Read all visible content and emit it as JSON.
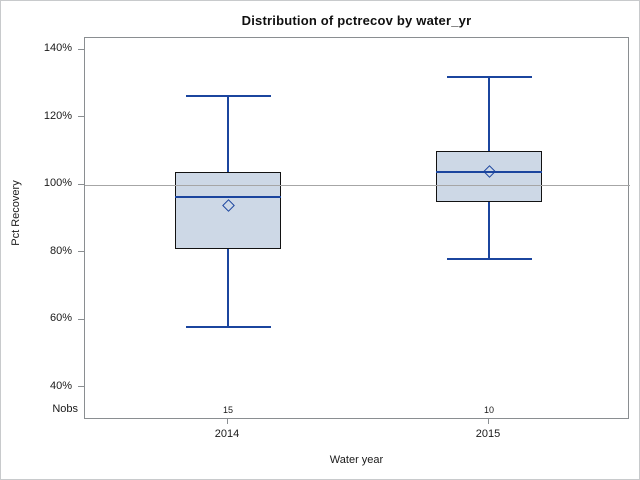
{
  "chart_data": {
    "type": "boxplot",
    "title": "Distribution of pctrecov by water_yr",
    "xlabel": "Water year",
    "ylabel": "Pct Recovery",
    "nobs_label": "Nobs",
    "y_axis": {
      "tick_labels": [
        "140%",
        "120%",
        "100%",
        "80%",
        "60%",
        "40%"
      ],
      "tick_values": [
        140,
        120,
        100,
        80,
        60,
        40
      ],
      "unit": "%"
    },
    "reference_line_value": 100,
    "categories": [
      "2014",
      "2015"
    ],
    "groups": [
      {
        "category": "2014",
        "nobs": "15",
        "whisker_low": 58,
        "q1": 81,
        "median": 96.5,
        "mean": 94,
        "q3": 104,
        "whisker_high": 126.5
      },
      {
        "category": "2015",
        "nobs": "10",
        "whisker_low": 78,
        "q1": 95,
        "median": 104,
        "mean": 104,
        "q3": 110,
        "whisker_high": 132
      }
    ],
    "legend": "none",
    "grid": "off",
    "colors": {
      "box_fill": "#cdd8e6",
      "box_border": "#121212",
      "line_blue": "#1b459e",
      "reference_gray": "#a6a6a6",
      "frame_gray": "#8a8e91",
      "canvas_border": "#c8cacc",
      "text": "#1a1a1a"
    }
  }
}
